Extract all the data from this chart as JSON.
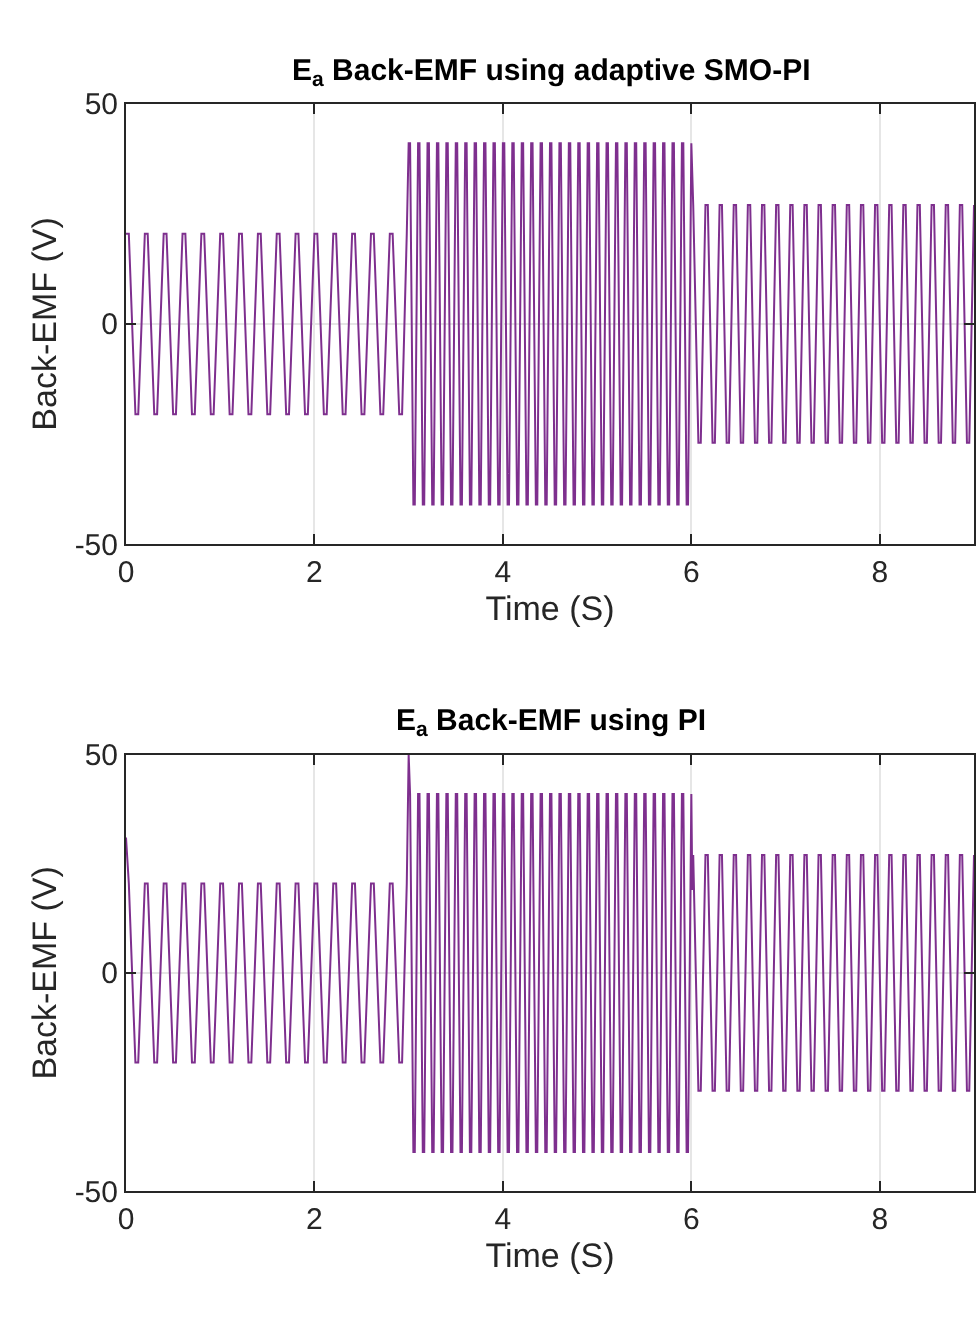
{
  "chart_data": [
    {
      "type": "line",
      "title": "E$_{a}$ Back-EMF using adaptive SMO-PI",
      "xlabel": "Time (S)",
      "ylabel": "Back-EMF (V)",
      "xlim": [
        0,
        9
      ],
      "ylim": [
        -50,
        50
      ],
      "xticks": [
        0,
        2,
        4,
        6,
        8
      ],
      "yticks": [
        -50,
        0,
        50
      ],
      "grid": true,
      "line_style": "solid",
      "series": [
        {
          "color": "#7e2f8e",
          "x": [
            0,
            0.03,
            0.1,
            0.13,
            0.2,
            0.23,
            0.3,
            0.33,
            0.4,
            0.43,
            0.5,
            0.53,
            0.6,
            0.63,
            0.7,
            0.73,
            0.8,
            0.83,
            0.9,
            0.93,
            1,
            1.03,
            1.1,
            1.13,
            1.2,
            1.23,
            1.3,
            1.33,
            1.4,
            1.43,
            1.5,
            1.53,
            1.6,
            1.63,
            1.7,
            1.73,
            1.8,
            1.83,
            1.9,
            1.93,
            2,
            2.03,
            2.1,
            2.13,
            2.2,
            2.23,
            2.3,
            2.33,
            2.4,
            2.43,
            2.5,
            2.53,
            2.6,
            2.63,
            2.7,
            2.73,
            2.8,
            2.83,
            2.9,
            2.93,
            2.98,
            3.0,
            3.015,
            3.05,
            3.065,
            3.1,
            3.115,
            3.15,
            3.165,
            3.2,
            3.215,
            3.25,
            3.265,
            3.3,
            3.315,
            3.35,
            3.365,
            3.4,
            3.415,
            3.45,
            3.465,
            3.5,
            3.515,
            3.55,
            3.565,
            3.6,
            3.615,
            3.65,
            3.665,
            3.7,
            3.715,
            3.75,
            3.765,
            3.8,
            3.815,
            3.85,
            3.865,
            3.9,
            3.915,
            3.95,
            3.965,
            4.0,
            4.015,
            4.05,
            4.065,
            4.1,
            4.115,
            4.15,
            4.165,
            4.2,
            4.215,
            4.25,
            4.265,
            4.3,
            4.315,
            4.35,
            4.365,
            4.4,
            4.415,
            4.45,
            4.465,
            4.5,
            4.515,
            4.55,
            4.565,
            4.6,
            4.615,
            4.65,
            4.665,
            4.7,
            4.715,
            4.75,
            4.765,
            4.8,
            4.815,
            4.85,
            4.865,
            4.9,
            4.915,
            4.95,
            4.965,
            5.0,
            5.015,
            5.05,
            5.065,
            5.1,
            5.115,
            5.15,
            5.165,
            5.2,
            5.215,
            5.25,
            5.265,
            5.3,
            5.315,
            5.35,
            5.365,
            5.4,
            5.415,
            5.45,
            5.465,
            5.5,
            5.515,
            5.55,
            5.565,
            5.6,
            5.615,
            5.65,
            5.665,
            5.7,
            5.715,
            5.75,
            5.765,
            5.8,
            5.815,
            5.85,
            5.865,
            5.9,
            5.915,
            5.95,
            5.965,
            6.0,
            6.02,
            6.075,
            6.1,
            6.15,
            6.175,
            6.225,
            6.25,
            6.3,
            6.325,
            6.375,
            6.4,
            6.45,
            6.475,
            6.525,
            6.55,
            6.6,
            6.625,
            6.675,
            6.7,
            6.75,
            6.775,
            6.825,
            6.85,
            6.9,
            6.925,
            6.975,
            7,
            7.05,
            7.075,
            7.125,
            7.15,
            7.2,
            7.225,
            7.275,
            7.3,
            7.35,
            7.375,
            7.425,
            7.45,
            7.5,
            7.525,
            7.575,
            7.6,
            7.65,
            7.675,
            7.725,
            7.75,
            7.8,
            7.825,
            7.875,
            7.9,
            7.95,
            7.975,
            8.025,
            8.05,
            8.1,
            8.125,
            8.175,
            8.2,
            8.25,
            8.275,
            8.325,
            8.35,
            8.4,
            8.425,
            8.475,
            8.5,
            8.55,
            8.575,
            8.625,
            8.65,
            8.7,
            8.725,
            8.775,
            8.8,
            8.85,
            8.875,
            8.925,
            8.95,
            9
          ],
          "values": [
            20.5,
            20.5,
            -20.5,
            -20.5,
            20.5,
            20.5,
            -20.5,
            -20.5,
            20.5,
            20.5,
            -20.5,
            -20.5,
            20.5,
            20.5,
            -20.5,
            -20.5,
            20.5,
            20.5,
            -20.5,
            -20.5,
            20.5,
            20.5,
            -20.5,
            -20.5,
            20.5,
            20.5,
            -20.5,
            -20.5,
            20.5,
            20.5,
            -20.5,
            -20.5,
            20.5,
            20.5,
            -20.5,
            -20.5,
            20.5,
            20.5,
            -20.5,
            -20.5,
            20.5,
            20.5,
            -20.5,
            -20.5,
            20.5,
            20.5,
            -20.5,
            -20.5,
            20.5,
            20.5,
            -20.5,
            -20.5,
            20.5,
            20.5,
            -20.5,
            -20.5,
            20.5,
            20.5,
            -20.5,
            -20.5,
            20.5,
            41,
            41,
            -41,
            -41,
            41,
            41,
            -41,
            -41,
            41,
            41,
            -41,
            -41,
            41,
            41,
            -41,
            -41,
            41,
            41,
            -41,
            -41,
            41,
            41,
            -41,
            -41,
            41,
            41,
            -41,
            -41,
            41,
            41,
            -41,
            -41,
            41,
            41,
            -41,
            -41,
            41,
            41,
            -41,
            -41,
            41,
            41,
            -41,
            -41,
            41,
            41,
            -41,
            -41,
            41,
            41,
            -41,
            -41,
            41,
            41,
            -41,
            -41,
            41,
            41,
            -41,
            -41,
            41,
            41,
            -41,
            -41,
            41,
            41,
            -41,
            -41,
            41,
            41,
            -41,
            -41,
            41,
            41,
            -41,
            -41,
            41,
            41,
            -41,
            -41,
            41,
            41,
            -41,
            -41,
            41,
            41,
            -41,
            -41,
            41,
            41,
            -41,
            -41,
            41,
            41,
            -41,
            -41,
            41,
            41,
            -41,
            -41,
            41,
            41,
            -41,
            -41,
            41,
            41,
            -41,
            -41,
            41,
            41,
            -41,
            -41,
            41,
            41,
            -41,
            -41,
            41,
            41,
            -41,
            -41,
            41,
            27,
            -27,
            -27,
            27,
            27,
            -27,
            -27,
            27,
            27,
            -27,
            -27,
            27,
            27,
            -27,
            -27,
            27,
            27,
            -27,
            -27,
            27,
            27,
            -27,
            -27,
            27,
            27,
            -27,
            -27,
            27,
            27,
            -27,
            -27,
            27,
            27,
            -27,
            -27,
            27,
            27,
            -27,
            -27,
            27,
            27,
            -27,
            -27,
            27,
            27,
            -27,
            -27,
            27,
            27,
            -27,
            -27,
            27,
            27,
            -27,
            -27,
            27,
            27,
            -27,
            -27,
            27,
            27,
            -27,
            -27,
            27,
            27,
            -27,
            -27,
            27,
            27,
            -27,
            -27,
            27,
            27,
            -27,
            -27,
            27,
            27,
            -27,
            -27,
            27
          ]
        }
      ]
    },
    {
      "type": "line",
      "title": "E$_{a}$ Back-EMF using PI",
      "xlabel": "Time (S)",
      "ylabel": "Back-EMF (V)",
      "xlim": [
        0,
        9
      ],
      "ylim": [
        -50,
        50
      ],
      "xticks": [
        0,
        2,
        4,
        6,
        8
      ],
      "yticks": [
        -50,
        0,
        50
      ],
      "grid": true,
      "line_style": "solid",
      "series": [
        {
          "color": "#7e2f8e",
          "x": [
            0,
            0.03,
            0.1,
            0.13,
            0.2,
            0.23,
            0.3,
            0.33,
            0.4,
            0.43,
            0.5,
            0.53,
            0.6,
            0.63,
            0.7,
            0.73,
            0.8,
            0.83,
            0.9,
            0.93,
            1,
            1.03,
            1.1,
            1.13,
            1.2,
            1.23,
            1.3,
            1.33,
            1.4,
            1.43,
            1.5,
            1.53,
            1.6,
            1.63,
            1.7,
            1.73,
            1.8,
            1.83,
            1.9,
            1.93,
            2,
            2.03,
            2.1,
            2.13,
            2.2,
            2.23,
            2.3,
            2.33,
            2.4,
            2.43,
            2.5,
            2.53,
            2.6,
            2.63,
            2.7,
            2.73,
            2.8,
            2.83,
            2.9,
            2.93,
            2.98,
            3.0,
            3.015,
            3.05,
            3.065,
            3.1,
            3.115,
            3.15,
            3.165,
            3.2,
            3.215,
            3.25,
            3.265,
            3.3,
            3.315,
            3.35,
            3.365,
            3.4,
            3.415,
            3.45,
            3.465,
            3.5,
            3.515,
            3.55,
            3.565,
            3.6,
            3.615,
            3.65,
            3.665,
            3.7,
            3.715,
            3.75,
            3.765,
            3.8,
            3.815,
            3.85,
            3.865,
            3.9,
            3.915,
            3.95,
            3.965,
            4.0,
            4.015,
            4.05,
            4.065,
            4.1,
            4.115,
            4.15,
            4.165,
            4.2,
            4.215,
            4.25,
            4.265,
            4.3,
            4.315,
            4.35,
            4.365,
            4.4,
            4.415,
            4.45,
            4.465,
            4.5,
            4.515,
            4.55,
            4.565,
            4.6,
            4.615,
            4.65,
            4.665,
            4.7,
            4.715,
            4.75,
            4.765,
            4.8,
            4.815,
            4.85,
            4.865,
            4.9,
            4.915,
            4.95,
            4.965,
            5.0,
            5.015,
            5.05,
            5.065,
            5.1,
            5.115,
            5.15,
            5.165,
            5.2,
            5.215,
            5.25,
            5.265,
            5.3,
            5.315,
            5.35,
            5.365,
            5.4,
            5.415,
            5.45,
            5.465,
            5.5,
            5.515,
            5.55,
            5.565,
            5.6,
            5.615,
            5.65,
            5.665,
            5.7,
            5.715,
            5.75,
            5.765,
            5.8,
            5.815,
            5.85,
            5.865,
            5.9,
            5.915,
            5.95,
            5.965,
            6.0,
            6.01,
            6.02,
            6.075,
            6.1,
            6.15,
            6.175,
            6.225,
            6.25,
            6.3,
            6.325,
            6.375,
            6.4,
            6.45,
            6.475,
            6.525,
            6.55,
            6.6,
            6.625,
            6.675,
            6.7,
            6.75,
            6.775,
            6.825,
            6.85,
            6.9,
            6.925,
            6.975,
            7,
            7.05,
            7.075,
            7.125,
            7.15,
            7.2,
            7.225,
            7.275,
            7.3,
            7.35,
            7.375,
            7.425,
            7.45,
            7.5,
            7.525,
            7.575,
            7.6,
            7.65,
            7.675,
            7.725,
            7.75,
            7.8,
            7.825,
            7.875,
            7.9,
            7.95,
            7.975,
            8.025,
            8.05,
            8.1,
            8.125,
            8.175,
            8.2,
            8.25,
            8.275,
            8.325,
            8.35,
            8.4,
            8.425,
            8.475,
            8.5,
            8.55,
            8.575,
            8.625,
            8.65,
            8.7,
            8.725,
            8.775,
            8.8,
            8.85,
            8.875,
            8.925,
            8.95,
            9
          ],
          "values": [
            31,
            20.5,
            -20.5,
            -20.5,
            20.5,
            20.5,
            -20.5,
            -20.5,
            20.5,
            20.5,
            -20.5,
            -20.5,
            20.5,
            20.5,
            -20.5,
            -20.5,
            20.5,
            20.5,
            -20.5,
            -20.5,
            20.5,
            20.5,
            -20.5,
            -20.5,
            20.5,
            20.5,
            -20.5,
            -20.5,
            20.5,
            20.5,
            -20.5,
            -20.5,
            20.5,
            20.5,
            -20.5,
            -20.5,
            20.5,
            20.5,
            -20.5,
            -20.5,
            20.5,
            20.5,
            -20.5,
            -20.5,
            20.5,
            20.5,
            -20.5,
            -20.5,
            20.5,
            20.5,
            -20.5,
            -20.5,
            20.5,
            20.5,
            -20.5,
            -20.5,
            20.5,
            20.5,
            -20.5,
            -20.5,
            20.5,
            50,
            41,
            -41,
            -41,
            41,
            41,
            -41,
            -41,
            41,
            41,
            -41,
            -41,
            41,
            41,
            -41,
            -41,
            41,
            41,
            -41,
            -41,
            41,
            41,
            -41,
            -41,
            41,
            41,
            -41,
            -41,
            41,
            41,
            -41,
            -41,
            41,
            41,
            -41,
            -41,
            41,
            41,
            -41,
            -41,
            41,
            41,
            -41,
            -41,
            41,
            41,
            -41,
            -41,
            41,
            41,
            -41,
            -41,
            41,
            41,
            -41,
            -41,
            41,
            41,
            -41,
            -41,
            41,
            41,
            -41,
            -41,
            41,
            41,
            -41,
            -41,
            41,
            41,
            -41,
            -41,
            41,
            41,
            -41,
            -41,
            41,
            41,
            -41,
            -41,
            41,
            41,
            -41,
            -41,
            41,
            41,
            -41,
            -41,
            41,
            41,
            -41,
            -41,
            41,
            41,
            -41,
            -41,
            41,
            41,
            -41,
            -41,
            41,
            41,
            -41,
            -41,
            41,
            41,
            -41,
            -41,
            41,
            41,
            -41,
            -41,
            41,
            41,
            -41,
            -41,
            41,
            41,
            -41,
            -41,
            41,
            19,
            27,
            -27,
            -27,
            27,
            27,
            -27,
            -27,
            27,
            27,
            -27,
            -27,
            27,
            27,
            -27,
            -27,
            27,
            27,
            -27,
            -27,
            27,
            27,
            -27,
            -27,
            27,
            27,
            -27,
            -27,
            27,
            27,
            -27,
            -27,
            27,
            27,
            -27,
            -27,
            27,
            27,
            -27,
            -27,
            27,
            27,
            -27,
            -27,
            27,
            27,
            -27,
            -27,
            27,
            27,
            -27,
            -27,
            27,
            27,
            -27,
            -27,
            27,
            27,
            -27,
            -27,
            27,
            27,
            -27,
            -27,
            27,
            27,
            -27,
            -27,
            27,
            27,
            -27,
            -27,
            27,
            27,
            -27,
            -27,
            27,
            27,
            -27,
            -27,
            27
          ]
        }
      ]
    }
  ]
}
